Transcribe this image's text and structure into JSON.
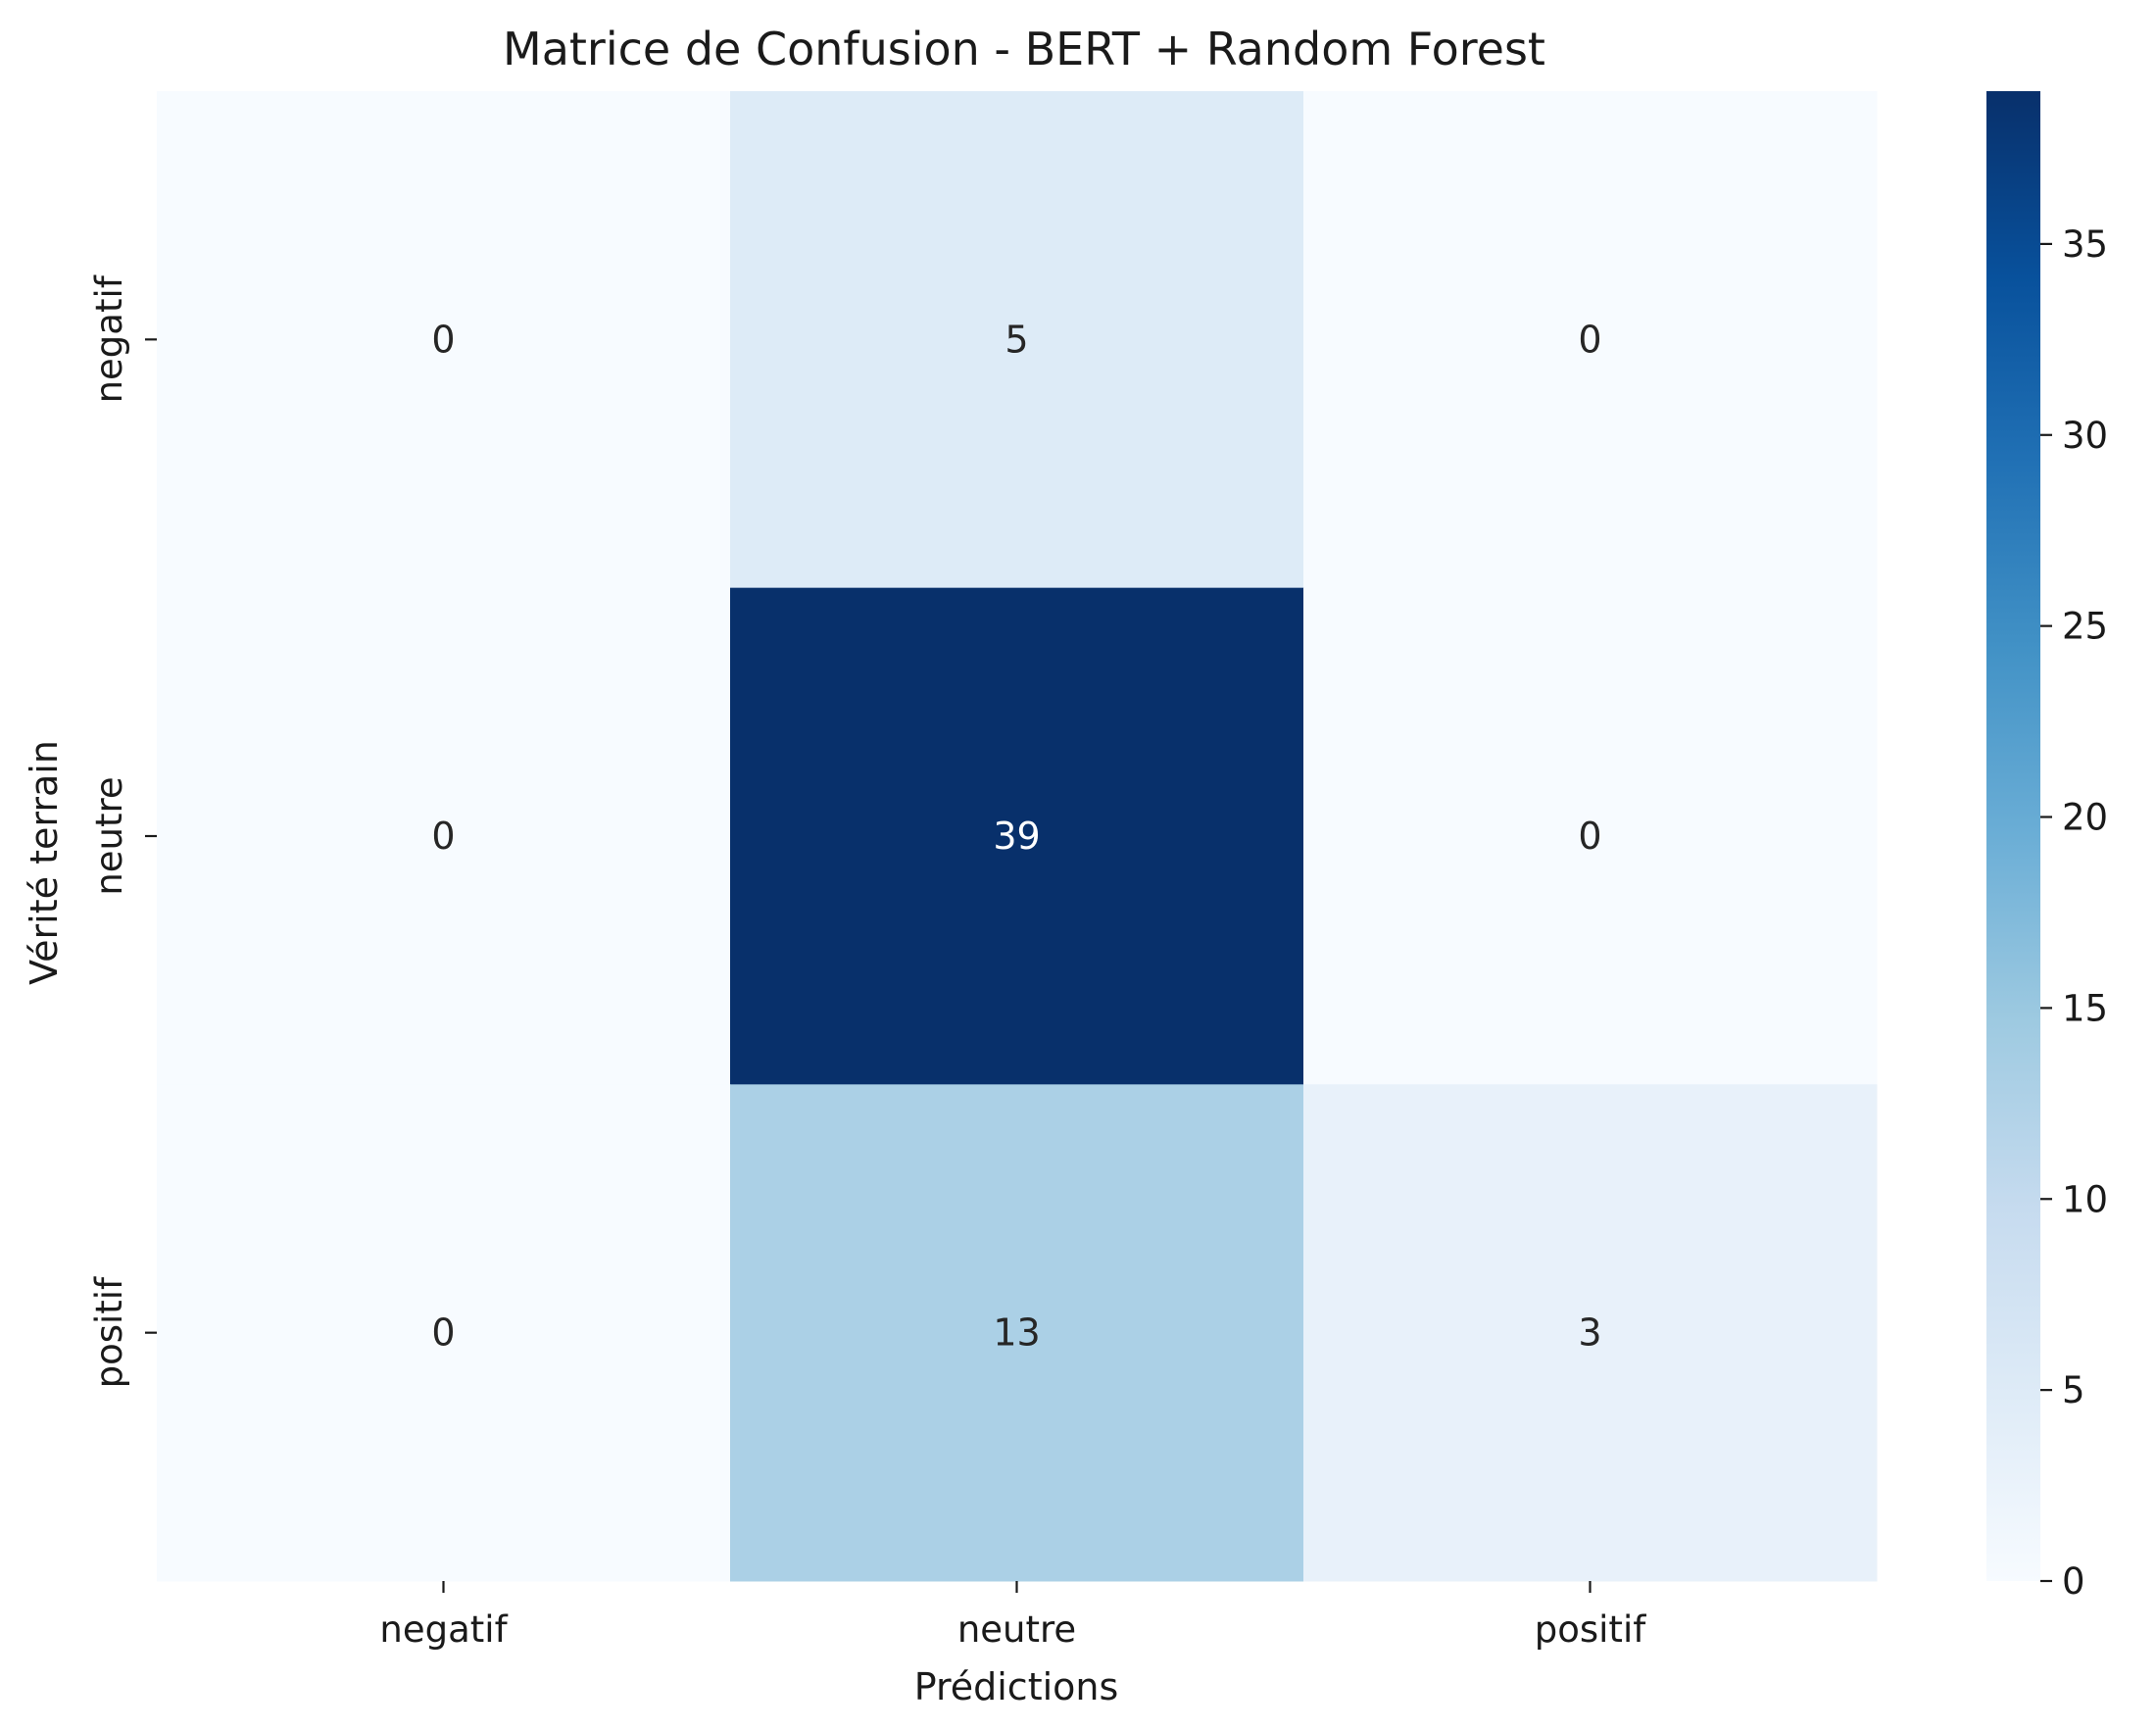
{
  "chart_data": {
    "type": "heatmap",
    "title": "Matrice de Confusion - BERT + Random Forest",
    "xlabel": "Prédictions",
    "ylabel": "Vérité terrain",
    "x_categories": [
      "negatif",
      "neutre",
      "positif"
    ],
    "y_categories": [
      "negatif",
      "neutre",
      "positif"
    ],
    "values": [
      [
        0,
        5,
        0
      ],
      [
        0,
        39,
        0
      ],
      [
        0,
        13,
        3
      ]
    ],
    "colormap": "Blues",
    "vmin": 0,
    "vmax": 39,
    "colorbar_ticks": [
      0,
      5,
      10,
      15,
      20,
      25,
      30,
      35
    ],
    "annotations": true
  }
}
